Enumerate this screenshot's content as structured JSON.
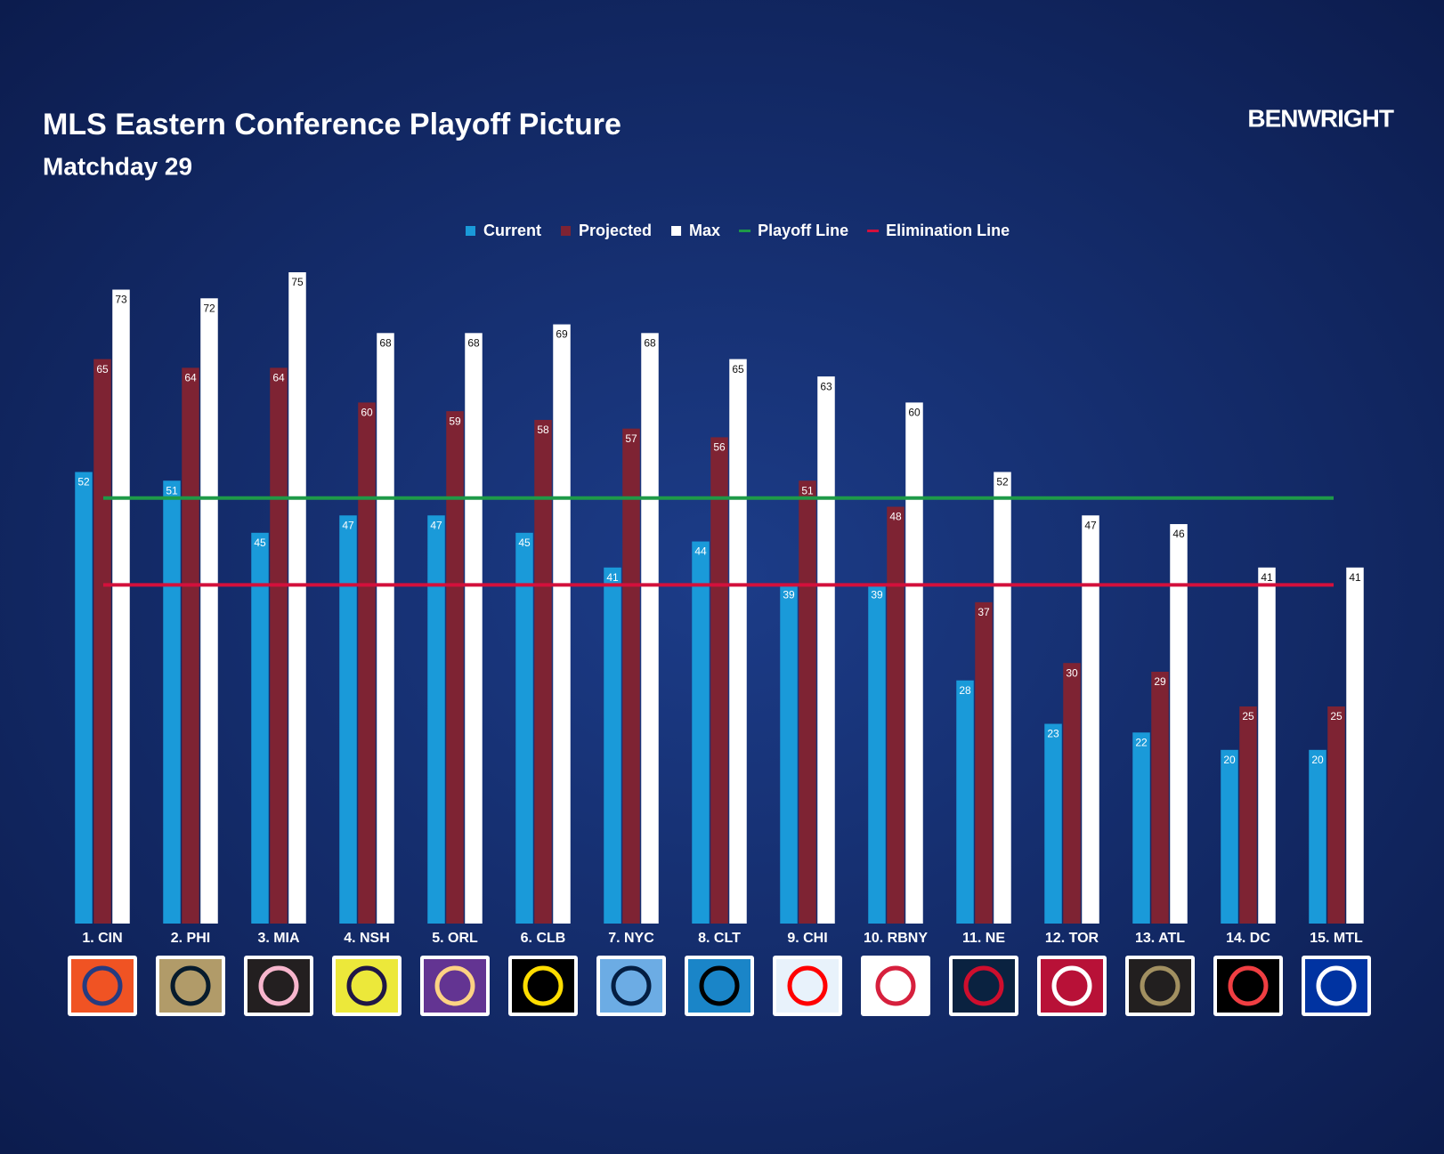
{
  "chart_data": {
    "type": "bar",
    "title": "MLS Eastern Conference Playoff Picture",
    "subtitle": "Matchday 29",
    "brand": "BENWRIGHT",
    "categories": [
      "1. CIN",
      "2. PHI",
      "3. MIA",
      "4. NSH",
      "5. ORL",
      "6. CLB",
      "7. NYC",
      "8. CLT",
      "9. CHI",
      "10. RBNY",
      "11. NE",
      "12. TOR",
      "13. ATL",
      "14. DC",
      "15. MTL"
    ],
    "series": [
      {
        "name": "Current",
        "color": "#1a9ad9",
        "values": [
          52,
          51,
          45,
          47,
          47,
          45,
          41,
          44,
          39,
          39,
          28,
          23,
          22,
          20,
          20
        ]
      },
      {
        "name": "Projected",
        "color": "#7e2333",
        "values": [
          65,
          64,
          64,
          60,
          59,
          58,
          57,
          56,
          51,
          48,
          37,
          30,
          29,
          25,
          25
        ]
      },
      {
        "name": "Max",
        "color": "#ffffff",
        "values": [
          73,
          72,
          75,
          68,
          68,
          69,
          68,
          65,
          63,
          60,
          52,
          47,
          46,
          41,
          41
        ]
      }
    ],
    "reference_lines": [
      {
        "name": "Playoff Line",
        "color": "#1e9a48",
        "value": 49
      },
      {
        "name": "Elimination Line",
        "color": "#d3103c",
        "value": 39
      }
    ],
    "ylim": [
      0,
      75
    ],
    "data_labels": true
  }
}
